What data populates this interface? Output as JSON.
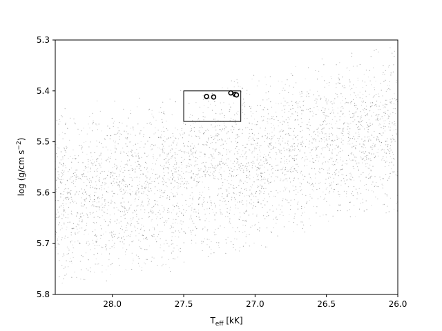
{
  "chart_data": {
    "type": "scatter",
    "title": "",
    "xlabel_main": "T",
    "xlabel_sub": "eff",
    "xlabel_rest": " [kK]",
    "ylabel_main": "log (g/cm s",
    "ylabel_sup": "−2",
    "ylabel_rest": ")",
    "xlim": [
      28.4,
      26.0
    ],
    "ylim": [
      5.8,
      5.3
    ],
    "x_inverted": true,
    "y_inverted": true,
    "xticks": [
      28.0,
      27.5,
      27.0,
      26.5,
      26.0
    ],
    "xtick_labels": [
      "28.0",
      "27.5",
      "27.0",
      "26.5",
      "26.0"
    ],
    "yticks": [
      5.3,
      5.4,
      5.5,
      5.6,
      5.7,
      5.8
    ],
    "ytick_labels": [
      "5.3",
      "5.4",
      "5.5",
      "5.6",
      "5.7",
      "5.8"
    ],
    "grid": false,
    "background_cloud": {
      "description_color": "#000000",
      "upper_edge": [
        [
          28.4,
          5.43
        ],
        [
          27.0,
          5.36
        ],
        [
          26.0,
          5.3
        ]
      ],
      "lower_edge": [
        [
          28.4,
          5.8
        ],
        [
          27.0,
          5.73
        ],
        [
          26.5,
          5.68
        ],
        [
          26.0,
          5.65
        ]
      ]
    },
    "highlight_box": {
      "x": [
        27.5,
        27.1
      ],
      "y": [
        5.4,
        5.46
      ]
    },
    "highlight_points": [
      {
        "x": 27.34,
        "y": 5.411
      },
      {
        "x": 27.29,
        "y": 5.412
      },
      {
        "x": 27.17,
        "y": 5.404
      },
      {
        "x": 27.14,
        "y": 5.407
      },
      {
        "x": 27.13,
        "y": 5.408
      }
    ]
  }
}
